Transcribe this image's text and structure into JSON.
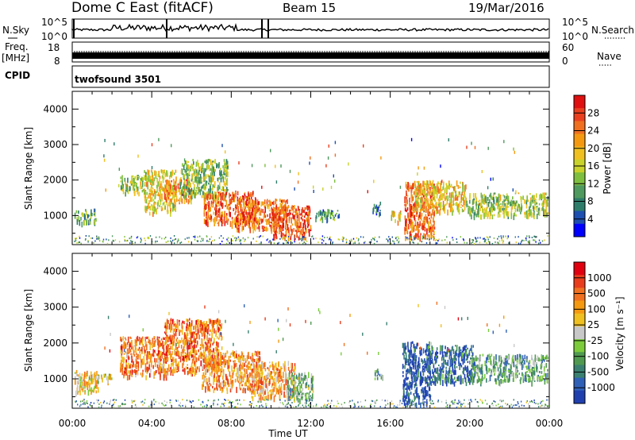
{
  "header": {
    "station": "Dome C East (fitACF)",
    "beam": "Beam 15",
    "date": "19/Mar/2016"
  },
  "small_panels": {
    "nsky": {
      "left_label": "N.Sky",
      "right_label": "N.Search",
      "left_ticks": [
        "10^5",
        "10^0"
      ],
      "right_ticks": [
        "10^5",
        "10^0"
      ]
    },
    "freq": {
      "left_label": "Freq.",
      "left_unit": "[MHz]",
      "right_label": "Nave",
      "left_ticks": [
        "18",
        "8"
      ],
      "right_ticks": [
        "60",
        "0"
      ]
    },
    "cpid": {
      "left_label": "CPID",
      "value": "twofsound 3501"
    }
  },
  "chart_data": [
    {
      "type": "heatmap",
      "panel": "power",
      "ylabel": "Slant Range [km]",
      "xlabel": "",
      "ylim": [
        180,
        4500
      ],
      "yticks": [
        1000,
        2000,
        3000,
        4000
      ],
      "xlim": [
        "00:00",
        "24:00"
      ],
      "xticks": [
        "00:00",
        "04:00",
        "08:00",
        "12:00",
        "16:00",
        "20:00",
        "00:00"
      ],
      "colorbar": {
        "label": "Power [dB]",
        "ticks": [
          "4",
          "8",
          "12",
          "16",
          "20",
          "24",
          "28"
        ],
        "colors": [
          "#0000ff",
          "#1d4fb0",
          "#2e7d6b",
          "#4f9a5e",
          "#7fbf3f",
          "#c8d22a",
          "#f0c020",
          "#f59a10",
          "#f07020",
          "#ea4020",
          "#e01010"
        ]
      },
      "regions": [
        {
          "t0": 0.1,
          "t1": 1.2,
          "r0": 820,
          "r1": 1200,
          "level": 0.3
        },
        {
          "t0": 2.4,
          "t1": 3.6,
          "r0": 1650,
          "r1": 2150,
          "level": 0.45
        },
        {
          "t0": 3.6,
          "t1": 5.2,
          "r0": 1100,
          "r1": 2300,
          "level": 0.55
        },
        {
          "t0": 4.6,
          "t1": 6.0,
          "r0": 1450,
          "r1": 2050,
          "level": 0.75
        },
        {
          "t0": 5.4,
          "t1": 7.8,
          "r0": 1550,
          "r1": 2600,
          "level": 0.4
        },
        {
          "t0": 6.6,
          "t1": 9.2,
          "r0": 800,
          "r1": 1700,
          "level": 0.85
        },
        {
          "t0": 8.2,
          "t1": 10.8,
          "r0": 650,
          "r1": 1500,
          "level": 0.8
        },
        {
          "t0": 10.0,
          "t1": 12.0,
          "r0": 400,
          "r1": 1300,
          "level": 0.88
        },
        {
          "t0": 12.2,
          "t1": 13.4,
          "r0": 900,
          "r1": 1200,
          "level": 0.25
        },
        {
          "t0": 15.1,
          "t1": 15.5,
          "r0": 1050,
          "r1": 1400,
          "level": 0.2
        },
        {
          "t0": 16.0,
          "t1": 16.5,
          "r0": 850,
          "r1": 1150,
          "level": 0.6
        },
        {
          "t0": 16.7,
          "t1": 18.2,
          "r0": 400,
          "r1": 2000,
          "level": 0.8
        },
        {
          "t0": 17.2,
          "t1": 19.8,
          "r0": 1150,
          "r1": 2000,
          "level": 0.6
        },
        {
          "t0": 19.8,
          "t1": 23.9,
          "r0": 1000,
          "r1": 1650,
          "level": 0.45
        }
      ]
    },
    {
      "type": "heatmap",
      "panel": "velocity",
      "ylabel": "Slant Range [km]",
      "xlabel": "Time UT",
      "ylim": [
        180,
        4500
      ],
      "yticks": [
        1000,
        2000,
        3000,
        4000
      ],
      "xlim": [
        "00:00",
        "24:00"
      ],
      "xticks": [
        "00:00",
        "04:00",
        "08:00",
        "12:00",
        "16:00",
        "20:00",
        "00:00"
      ],
      "colorbar": {
        "label": "Velocity [m s⁻¹]",
        "ticks": [
          "1000",
          "500",
          "100",
          "25",
          "-25",
          "-100",
          "-500",
          "-1000"
        ],
        "colors": [
          "#2040b0",
          "#2f60b8",
          "#3a8070",
          "#4f9a50",
          "#7ccc3c",
          "#c8c8c8",
          "#f0c020",
          "#f59a10",
          "#f07020",
          "#e83c1c",
          "#e00010"
        ]
      },
      "regions": [
        {
          "t0": 0.1,
          "t1": 1.3,
          "r0": 650,
          "r1": 1250,
          "level": 0.6
        },
        {
          "t0": 0.8,
          "t1": 2.0,
          "r0": 950,
          "r1": 1150,
          "level": 0.5
        },
        {
          "t0": 2.4,
          "t1": 4.8,
          "r0": 1100,
          "r1": 2200,
          "level": 0.75
        },
        {
          "t0": 4.6,
          "t1": 7.5,
          "r0": 1200,
          "r1": 2700,
          "level": 0.78
        },
        {
          "t0": 6.5,
          "t1": 9.5,
          "r0": 700,
          "r1": 1800,
          "level": 0.72
        },
        {
          "t0": 9.0,
          "t1": 11.2,
          "r0": 500,
          "r1": 1500,
          "level": 0.68
        },
        {
          "t0": 10.8,
          "t1": 12.1,
          "r0": 450,
          "r1": 1200,
          "level": 0.35
        },
        {
          "t0": 15.2,
          "t1": 15.6,
          "r0": 1000,
          "r1": 1300,
          "level": 0.3
        },
        {
          "t0": 16.6,
          "t1": 18.0,
          "r0": 300,
          "r1": 2050,
          "level": 0.05
        },
        {
          "t0": 17.8,
          "t1": 20.2,
          "r0": 900,
          "r1": 1950,
          "level": 0.15
        },
        {
          "t0": 20.0,
          "t1": 23.9,
          "r0": 950,
          "r1": 1700,
          "level": 0.3
        }
      ]
    }
  ]
}
